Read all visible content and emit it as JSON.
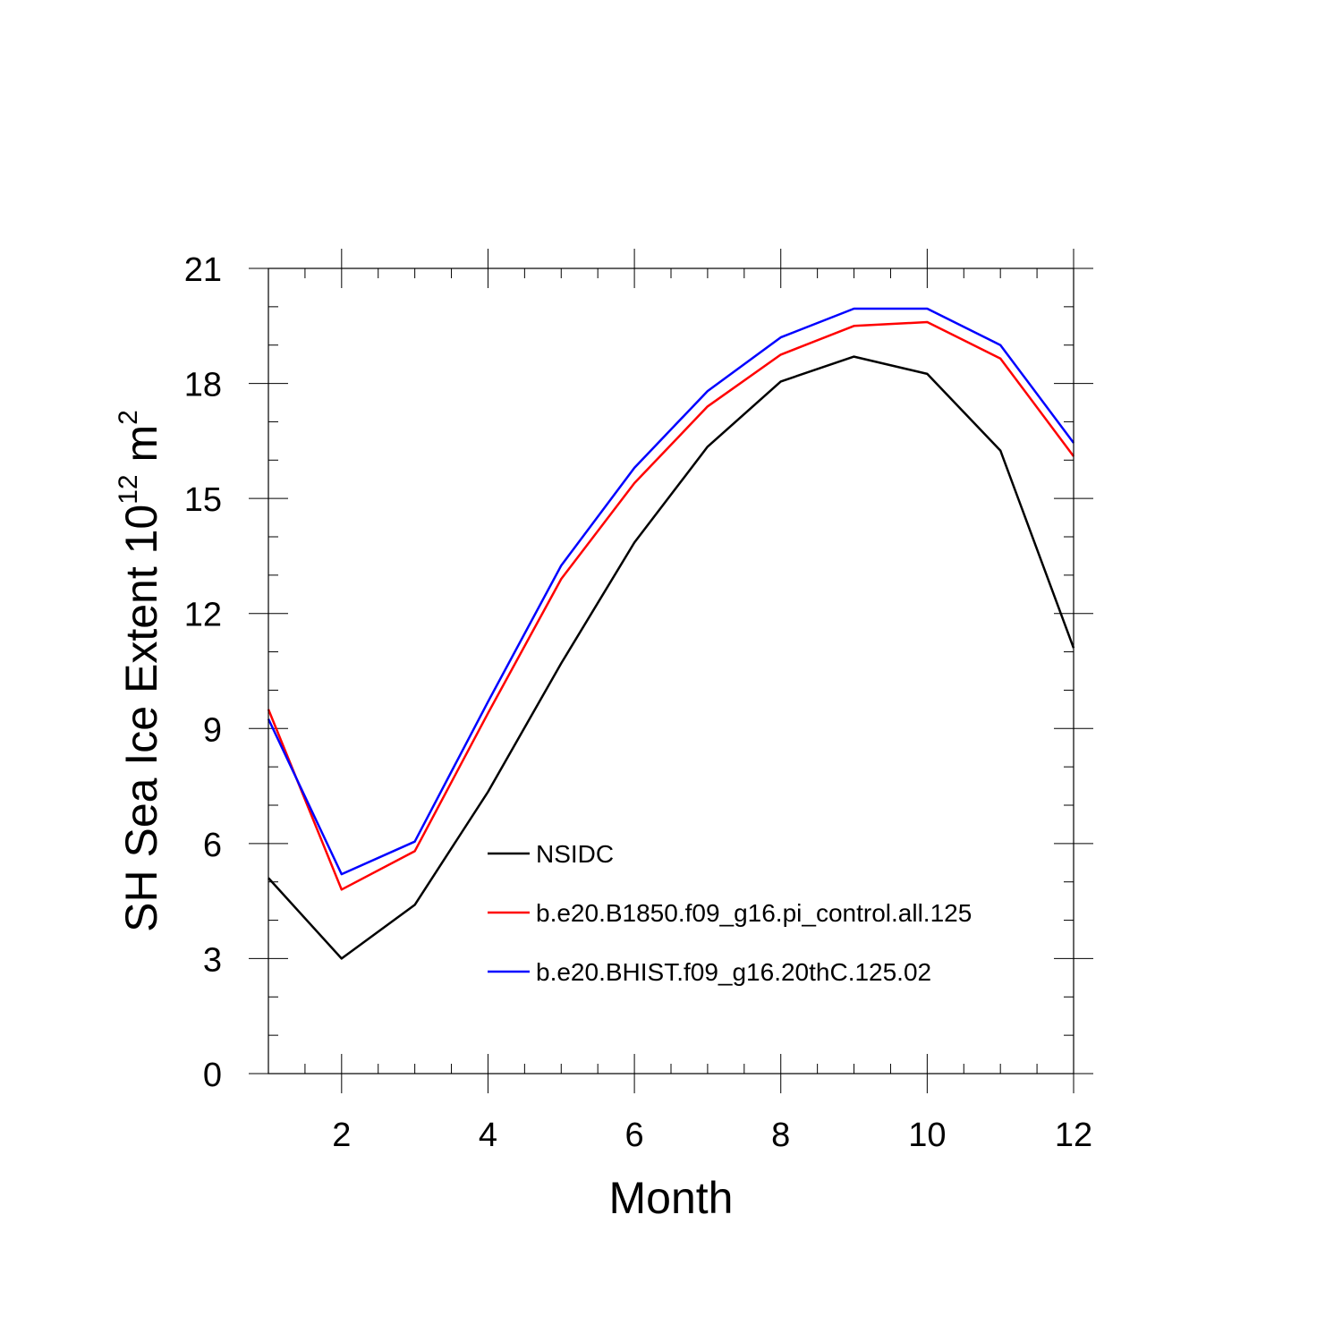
{
  "chart_data": {
    "type": "line",
    "title": "",
    "xlabel": "Month",
    "ylabel_main": "SH Sea Ice Extent 10",
    "ylabel_exp": "12",
    "ylabel_unit": " m",
    "ylabel_unit_exp": "2",
    "xlim": [
      1,
      12
    ],
    "ylim": [
      0,
      21
    ],
    "xticks": [
      2,
      4,
      6,
      8,
      10,
      12
    ],
    "yticks": [
      0,
      3,
      6,
      9,
      12,
      15,
      18,
      21
    ],
    "x": [
      1,
      2,
      3,
      4,
      5,
      6,
      7,
      8,
      9,
      10,
      11,
      12
    ],
    "series": [
      {
        "name": "NSIDC",
        "color": "#000000",
        "values": [
          5.1,
          3.0,
          4.4,
          7.35,
          10.7,
          13.85,
          16.35,
          18.05,
          18.7,
          18.25,
          16.25,
          11.1
        ]
      },
      {
        "name": "b.e20.B1850.f09_g16.pi_control.all.125",
        "color": "#ff0000",
        "values": [
          9.5,
          4.8,
          5.8,
          9.4,
          12.9,
          15.4,
          17.4,
          18.75,
          19.5,
          19.6,
          18.65,
          16.1
        ]
      },
      {
        "name": "b.e20.BHIST.f09_g16.20thC.125.02",
        "color": "#0000ff",
        "values": [
          9.25,
          5.2,
          6.05,
          9.7,
          13.25,
          15.8,
          17.8,
          19.2,
          19.95,
          19.95,
          19.0,
          16.45
        ]
      }
    ],
    "legend_position": "center-inside"
  }
}
